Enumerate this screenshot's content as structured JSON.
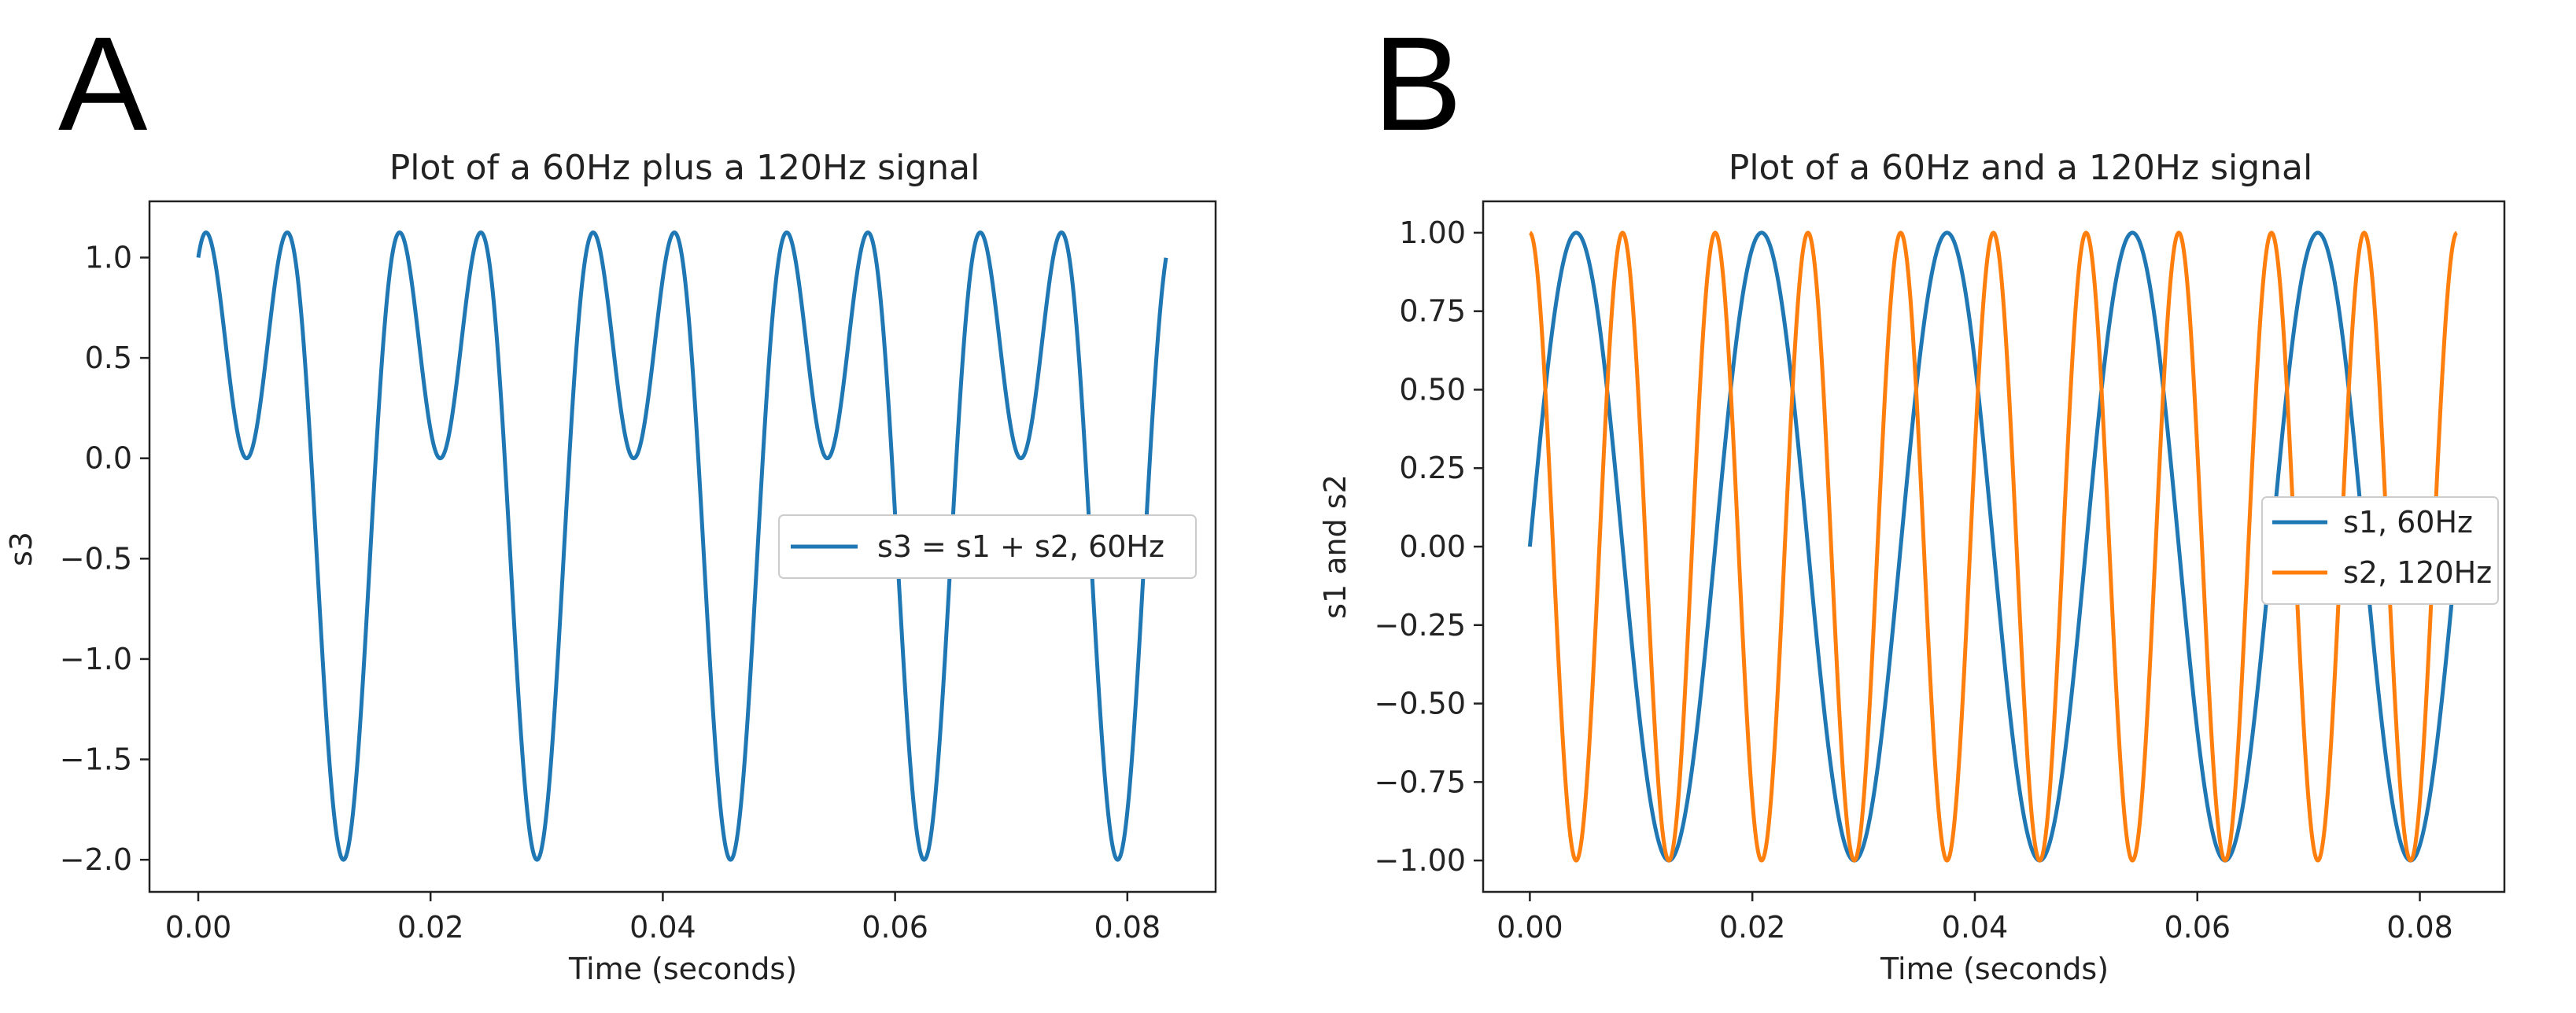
{
  "colors": {
    "blue": "#1f77b4",
    "orange": "#ff7f0e",
    "axis": "#222222",
    "legend_border": "#cccccc"
  },
  "chart_data": [
    {
      "panel": "A",
      "type": "line",
      "title": "Plot of a 60Hz plus a 120Hz signal",
      "xlabel": "Time (seconds)",
      "ylabel": "s3",
      "xlim": [
        -0.0042,
        0.0876
      ],
      "ylim": [
        -2.16,
        1.28
      ],
      "xticks": [
        0.0,
        0.02,
        0.04,
        0.06,
        0.08
      ],
      "xtick_labels": [
        "0.00",
        "0.02",
        "0.04",
        "0.06",
        "0.08"
      ],
      "yticks": [
        1.0,
        0.5,
        0.0,
        -0.5,
        -1.0,
        -1.5,
        -2.0
      ],
      "ytick_labels": [
        "1.0",
        "0.5",
        "0.0",
        "−0.5",
        "−1.0",
        "−1.5",
        "−2.0"
      ],
      "grid": false,
      "legend_position": "center-right",
      "series": [
        {
          "name": "s3 = s1 + s2, 60Hz",
          "color": "#1f77b4",
          "function": "sin(2*pi*60*t) + cos(2*pi*120*t)",
          "t_range": [
            0,
            0.08333
          ]
        }
      ]
    },
    {
      "panel": "B",
      "type": "line",
      "title": "Plot of a 60Hz and a 120Hz signal",
      "xlabel": "Time (seconds)",
      "ylabel": "s1 and s2",
      "xlim": [
        -0.0042,
        0.0876
      ],
      "ylim": [
        -1.1,
        1.1
      ],
      "xticks": [
        0.0,
        0.02,
        0.04,
        0.06,
        0.08
      ],
      "xtick_labels": [
        "0.00",
        "0.02",
        "0.04",
        "0.06",
        "0.08"
      ],
      "yticks": [
        1.0,
        0.75,
        0.5,
        0.25,
        0.0,
        -0.25,
        -0.5,
        -0.75,
        -1.0
      ],
      "ytick_labels": [
        "1.00",
        "0.75",
        "0.50",
        "0.25",
        "0.00",
        "−0.25",
        "−0.50",
        "−0.75",
        "−1.00"
      ],
      "grid": false,
      "legend_position": "center-right",
      "series": [
        {
          "name": "s1, 60Hz",
          "color": "#1f77b4",
          "function": "sin(2*pi*60*t)",
          "t_range": [
            0,
            0.08333
          ]
        },
        {
          "name": "s2, 120Hz",
          "color": "#ff7f0e",
          "function": "cos(2*pi*120*t)",
          "t_range": [
            0,
            0.08333
          ]
        }
      ]
    }
  ]
}
